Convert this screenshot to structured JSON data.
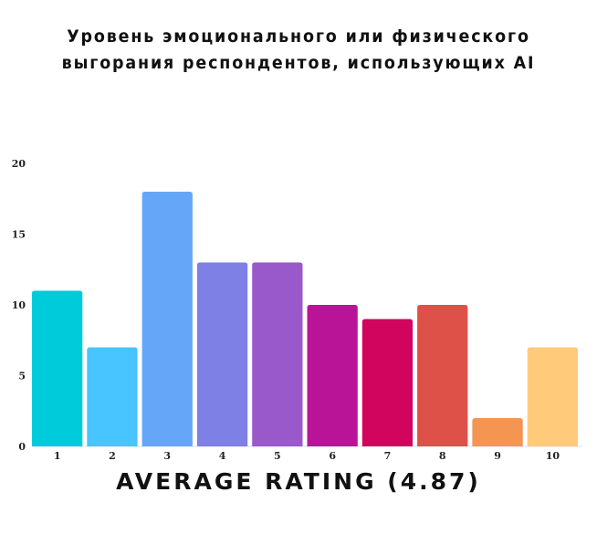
{
  "chart_data": {
    "type": "bar",
    "title": [
      "Уровень эмоционального или физического",
      "выгорания респондентов, использующих AI"
    ],
    "xlabel": "AVERAGE RATING (4.87)",
    "ylabel": "",
    "categories": [
      "1",
      "2",
      "3",
      "4",
      "5",
      "6",
      "7",
      "8",
      "9",
      "10"
    ],
    "values": [
      11,
      7,
      18,
      13,
      13,
      10,
      9,
      10,
      2,
      7
    ],
    "colors": [
      "#00CBDB",
      "#48C4FE",
      "#66A6F9",
      "#7F80E5",
      "#9A59CB",
      "#B91498",
      "#D1045E",
      "#DE5148",
      "#F49552",
      "#FFCA7A"
    ],
    "ylim": [
      0,
      20
    ],
    "yticks": [
      "0",
      "5",
      "10",
      "15",
      "20"
    ],
    "grid": true,
    "legend": "none"
  }
}
